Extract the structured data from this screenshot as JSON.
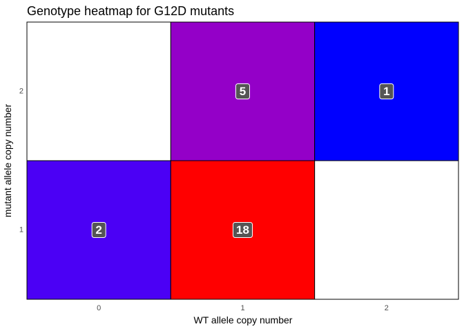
{
  "chart_data": {
    "type": "heatmap",
    "title": "Genotype heatmap for G12D mutants",
    "xlabel": "WT allele copy number",
    "ylabel": "mutant allele copy number",
    "x_categories": [
      "0",
      "1",
      "2"
    ],
    "y_categories": [
      "1",
      "2"
    ],
    "cells": [
      {
        "x": "0",
        "y": "1",
        "value": 2,
        "label": "2",
        "color": "#4B00F5"
      },
      {
        "x": "1",
        "y": "1",
        "value": 18,
        "label": "18",
        "color": "#FF0000"
      },
      {
        "x": "2",
        "y": "1",
        "value": null,
        "label": "",
        "color": "#FFFFFF"
      },
      {
        "x": "0",
        "y": "2",
        "value": null,
        "label": "",
        "color": "#FFFFFF"
      },
      {
        "x": "1",
        "y": "2",
        "value": 5,
        "label": "5",
        "color": "#9400C8"
      },
      {
        "x": "2",
        "y": "2",
        "value": 1,
        "label": "1",
        "color": "#0000FF"
      }
    ],
    "grid": false,
    "legend": "none",
    "colors": {
      "cell_border": "#000000",
      "label_box": "#555555",
      "label_text": "#FFFFFF"
    }
  }
}
